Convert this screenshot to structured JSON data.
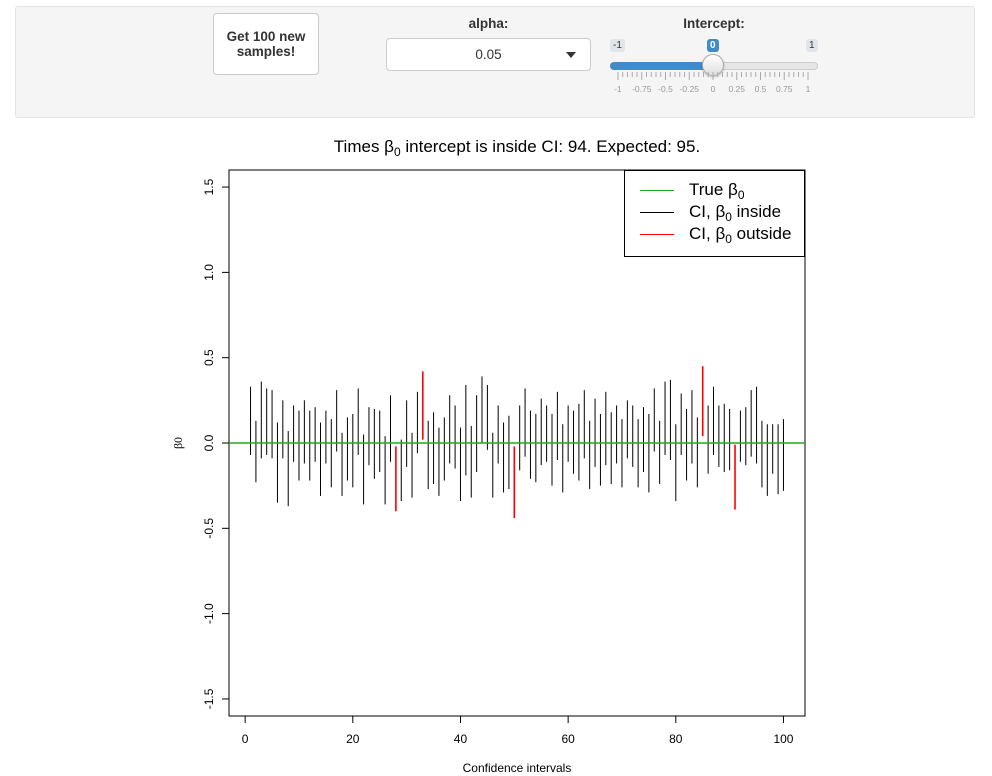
{
  "controls": {
    "sample_button_label": "Get 100 new samples!",
    "alpha_label": "alpha:",
    "alpha_value": "0.05",
    "intercept_label": "Intercept:",
    "slider": {
      "min_label": "-1",
      "max_label": "1",
      "current_label": "0",
      "value": 0,
      "min": -1,
      "max": 1,
      "tick_labels": [
        "-1",
        "-0.75",
        "-0.5",
        "-0.25",
        "0",
        "0.25",
        "0.5",
        "0.75",
        "1"
      ]
    }
  },
  "plot": {
    "title_prefix": "Times β",
    "title_sub": "0",
    "title_suffix": " intercept is inside CI: 94. Expected: 95.",
    "legend": [
      {
        "prefix": "True β",
        "sub": "0",
        "suffix": "",
        "color": "#22aa22"
      },
      {
        "prefix": "CI, β",
        "sub": "0",
        "suffix": " inside",
        "color": "#000000"
      },
      {
        "prefix": "CI, β",
        "sub": "0",
        "suffix": " outside",
        "color": "#ff0000"
      }
    ]
  },
  "chart_data": {
    "type": "errorbar",
    "title": "Times β0 intercept is inside CI: 94. Expected: 95.",
    "xlabel": "Confidence intervals",
    "ylabel": "β0",
    "xlim": [
      -3,
      104
    ],
    "ylim": [
      -1.6,
      1.6
    ],
    "x_ticks": [
      0,
      20,
      40,
      60,
      80,
      100
    ],
    "y_ticks": [
      -1.5,
      -1.0,
      -0.5,
      0.0,
      0.5,
      1.0,
      1.5
    ],
    "x_tick_labels": [
      "0",
      "20",
      "40",
      "60",
      "80",
      "100"
    ],
    "y_tick_labels": [
      "-1.5",
      "-1.0",
      "-0.5",
      "0.0",
      "0.5",
      "1.0",
      "1.5"
    ],
    "true_value": 0,
    "true_line_color": "#22aa22",
    "inside_color": "#000000",
    "outside_color": "#ff0000",
    "legend_position": "top-right",
    "intervals": [
      {
        "x": 1,
        "lower": -0.07,
        "upper": 0.33
      },
      {
        "x": 2,
        "lower": -0.23,
        "upper": 0.13
      },
      {
        "x": 3,
        "lower": -0.09,
        "upper": 0.36
      },
      {
        "x": 4,
        "lower": -0.07,
        "upper": 0.32
      },
      {
        "x": 5,
        "lower": -0.09,
        "upper": 0.31
      },
      {
        "x": 6,
        "lower": -0.35,
        "upper": 0.12
      },
      {
        "x": 7,
        "lower": -0.09,
        "upper": 0.25
      },
      {
        "x": 8,
        "lower": -0.37,
        "upper": 0.07
      },
      {
        "x": 9,
        "lower": -0.11,
        "upper": 0.22
      },
      {
        "x": 10,
        "lower": -0.22,
        "upper": 0.19
      },
      {
        "x": 11,
        "lower": -0.12,
        "upper": 0.25
      },
      {
        "x": 12,
        "lower": -0.22,
        "upper": 0.19
      },
      {
        "x": 13,
        "lower": -0.11,
        "upper": 0.21
      },
      {
        "x": 14,
        "lower": -0.31,
        "upper": 0.12
      },
      {
        "x": 15,
        "lower": -0.12,
        "upper": 0.19
      },
      {
        "x": 16,
        "lower": -0.26,
        "upper": 0.14
      },
      {
        "x": 17,
        "lower": -0.05,
        "upper": 0.31
      },
      {
        "x": 18,
        "lower": -0.31,
        "upper": 0.06
      },
      {
        "x": 19,
        "lower": -0.22,
        "upper": 0.15
      },
      {
        "x": 20,
        "lower": -0.26,
        "upper": 0.17
      },
      {
        "x": 21,
        "lower": -0.07,
        "upper": 0.32
      },
      {
        "x": 22,
        "lower": -0.36,
        "upper": 0.05
      },
      {
        "x": 23,
        "lower": -0.13,
        "upper": 0.21
      },
      {
        "x": 24,
        "lower": -0.21,
        "upper": 0.2
      },
      {
        "x": 25,
        "lower": -0.17,
        "upper": 0.19
      },
      {
        "x": 26,
        "lower": -0.36,
        "upper": 0.04
      },
      {
        "x": 27,
        "lower": -0.11,
        "upper": 0.28
      },
      {
        "x": 28,
        "lower": -0.4,
        "upper": -0.02
      },
      {
        "x": 29,
        "lower": -0.34,
        "upper": 0.02
      },
      {
        "x": 30,
        "lower": -0.14,
        "upper": 0.25
      },
      {
        "x": 31,
        "lower": -0.32,
        "upper": 0.06
      },
      {
        "x": 32,
        "lower": -0.06,
        "upper": 0.3
      },
      {
        "x": 33,
        "lower": 0.02,
        "upper": 0.42
      },
      {
        "x": 34,
        "lower": -0.27,
        "upper": 0.13
      },
      {
        "x": 35,
        "lower": -0.24,
        "upper": 0.18
      },
      {
        "x": 36,
        "lower": -0.31,
        "upper": 0.09
      },
      {
        "x": 37,
        "lower": -0.22,
        "upper": 0.15
      },
      {
        "x": 38,
        "lower": -0.12,
        "upper": 0.28
      },
      {
        "x": 39,
        "lower": -0.15,
        "upper": 0.22
      },
      {
        "x": 40,
        "lower": -0.34,
        "upper": 0.09
      },
      {
        "x": 41,
        "lower": -0.19,
        "upper": 0.34
      },
      {
        "x": 42,
        "lower": -0.32,
        "upper": 0.1
      },
      {
        "x": 43,
        "lower": -0.17,
        "upper": 0.28
      },
      {
        "x": 44,
        "lower": 0.0,
        "upper": 0.39
      },
      {
        "x": 45,
        "lower": -0.04,
        "upper": 0.34
      },
      {
        "x": 46,
        "lower": -0.32,
        "upper": 0.06
      },
      {
        "x": 47,
        "lower": -0.12,
        "upper": 0.22
      },
      {
        "x": 48,
        "lower": -0.29,
        "upper": 0.12
      },
      {
        "x": 49,
        "lower": -0.27,
        "upper": 0.16
      },
      {
        "x": 50,
        "lower": -0.44,
        "upper": -0.02
      },
      {
        "x": 51,
        "lower": -0.16,
        "upper": 0.22
      },
      {
        "x": 52,
        "lower": -0.08,
        "upper": 0.32
      },
      {
        "x": 53,
        "lower": -0.21,
        "upper": 0.19
      },
      {
        "x": 54,
        "lower": -0.23,
        "upper": 0.17
      },
      {
        "x": 55,
        "lower": -0.13,
        "upper": 0.26
      },
      {
        "x": 56,
        "lower": -0.11,
        "upper": 0.22
      },
      {
        "x": 57,
        "lower": -0.25,
        "upper": 0.17
      },
      {
        "x": 58,
        "lower": -0.1,
        "upper": 0.3
      },
      {
        "x": 59,
        "lower": -0.29,
        "upper": 0.11
      },
      {
        "x": 60,
        "lower": -0.11,
        "upper": 0.22
      },
      {
        "x": 61,
        "lower": -0.18,
        "upper": 0.19
      },
      {
        "x": 62,
        "lower": -0.22,
        "upper": 0.23
      },
      {
        "x": 63,
        "lower": -0.09,
        "upper": 0.31
      },
      {
        "x": 64,
        "lower": -0.27,
        "upper": 0.13
      },
      {
        "x": 65,
        "lower": -0.14,
        "upper": 0.26
      },
      {
        "x": 66,
        "lower": -0.25,
        "upper": 0.17
      },
      {
        "x": 67,
        "lower": -0.13,
        "upper": 0.3
      },
      {
        "x": 68,
        "lower": -0.24,
        "upper": 0.18
      },
      {
        "x": 69,
        "lower": -0.12,
        "upper": 0.22
      },
      {
        "x": 70,
        "lower": -0.26,
        "upper": 0.14
      },
      {
        "x": 71,
        "lower": -0.09,
        "upper": 0.25
      },
      {
        "x": 72,
        "lower": -0.14,
        "upper": 0.22
      },
      {
        "x": 73,
        "lower": -0.26,
        "upper": 0.14
      },
      {
        "x": 74,
        "lower": -0.17,
        "upper": 0.21
      },
      {
        "x": 75,
        "lower": -0.29,
        "upper": 0.17
      },
      {
        "x": 76,
        "lower": -0.05,
        "upper": 0.32
      },
      {
        "x": 77,
        "lower": -0.24,
        "upper": 0.13
      },
      {
        "x": 78,
        "lower": -0.07,
        "upper": 0.36
      },
      {
        "x": 79,
        "lower": -0.1,
        "upper": 0.37
      },
      {
        "x": 80,
        "lower": -0.34,
        "upper": 0.11
      },
      {
        "x": 81,
        "lower": -0.07,
        "upper": 0.29
      },
      {
        "x": 82,
        "lower": -0.22,
        "upper": 0.2
      },
      {
        "x": 83,
        "lower": -0.12,
        "upper": 0.31
      },
      {
        "x": 84,
        "lower": -0.26,
        "upper": 0.15
      },
      {
        "x": 85,
        "lower": 0.04,
        "upper": 0.45
      },
      {
        "x": 86,
        "lower": -0.18,
        "upper": 0.22
      },
      {
        "x": 87,
        "lower": -0.07,
        "upper": 0.33
      },
      {
        "x": 88,
        "lower": -0.14,
        "upper": 0.22
      },
      {
        "x": 89,
        "lower": -0.17,
        "upper": 0.23
      },
      {
        "x": 90,
        "lower": -0.16,
        "upper": 0.2
      },
      {
        "x": 91,
        "lower": -0.39,
        "upper": -0.01
      },
      {
        "x": 92,
        "lower": -0.11,
        "upper": 0.19
      },
      {
        "x": 93,
        "lower": -0.13,
        "upper": 0.21
      },
      {
        "x": 94,
        "lower": -0.08,
        "upper": 0.31
      },
      {
        "x": 95,
        "lower": -0.12,
        "upper": 0.33
      },
      {
        "x": 96,
        "lower": -0.26,
        "upper": 0.13
      },
      {
        "x": 97,
        "lower": -0.31,
        "upper": 0.11
      },
      {
        "x": 98,
        "lower": -0.18,
        "upper": 0.11
      },
      {
        "x": 99,
        "lower": -0.3,
        "upper": 0.11
      },
      {
        "x": 100,
        "lower": -0.28,
        "upper": 0.14
      }
    ]
  }
}
